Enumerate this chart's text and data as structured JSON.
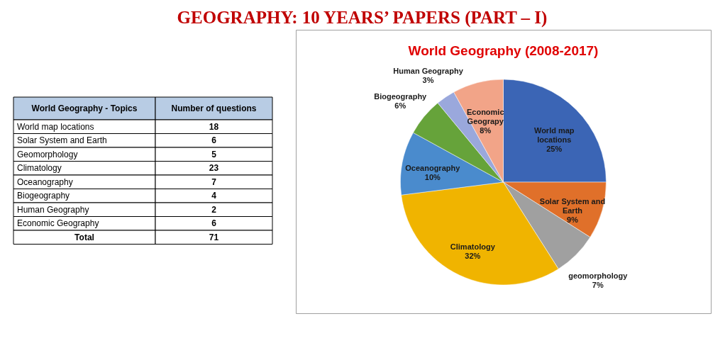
{
  "chart_data": [
    {
      "type": "other",
      "title": "GEOGRAPHY: 10 YEARS’ PAPERS (PART – I)",
      "xlabel": "World Geography - Topics",
      "ylabel": "Number of questions",
      "categories": [
        "World map locations",
        "Solar System and Earth",
        "Geomorphology",
        "Climatology",
        "Oceanography",
        "Biogeography",
        "Human Geography",
        "Economic Geography",
        "Total"
      ],
      "values": [
        18,
        6,
        5,
        23,
        7,
        4,
        2,
        6,
        71
      ],
      "data_labels": true
    },
    {
      "type": "pie",
      "title": "World Geography (2008-2017)",
      "categories": [
        "World map locations",
        "Solar System and Earth",
        "geomorphology",
        "Climatology",
        "Oceanography",
        "Biogeography",
        "Human Geography",
        "Economic Geograpy"
      ],
      "values": [
        25,
        9,
        7,
        32,
        10,
        6,
        3,
        8
      ],
      "colors": [
        "#3b65b5",
        "#e0702a",
        "#a0a0a0",
        "#f0b400",
        "#4a8bcd",
        "#66a33a",
        "#9aa8dc",
        "#f2a488"
      ],
      "value_labels": [
        "25%",
        "9%",
        "7%",
        "32%",
        "10%",
        "6%",
        "3%",
        "8%"
      ]
    }
  ]
}
